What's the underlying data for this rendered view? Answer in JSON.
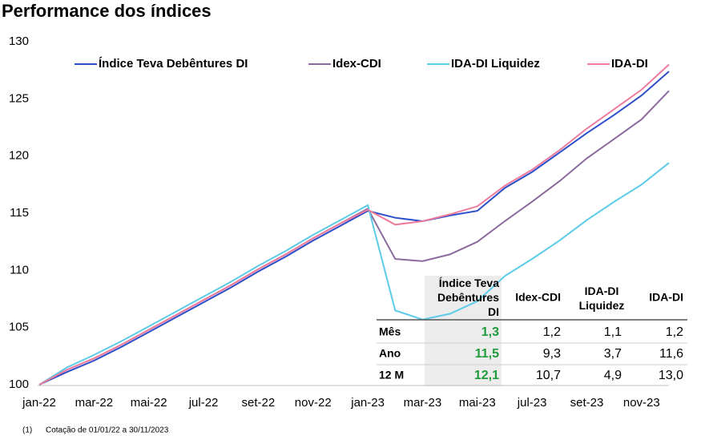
{
  "chart_data": {
    "type": "line",
    "title": "Performance dos índices",
    "categories": [
      "jan-22",
      null,
      "mar-22",
      null,
      "mai-22",
      null,
      "jul-22",
      null,
      "set-22",
      null,
      "nov-22",
      null,
      "jan-23",
      null,
      "mar-23",
      null,
      "mai-23",
      null,
      "jul-23",
      null,
      "set-23",
      null,
      "nov-23",
      null
    ],
    "series": [
      {
        "name": "Índice Teva Debêntures DI",
        "color": "#2e4fc9",
        "values": [
          100,
          101.1,
          102.1,
          103.3,
          104.6,
          105.9,
          107.2,
          108.5,
          109.9,
          111.2,
          112.6,
          113.9,
          115.2,
          114.6,
          114.3,
          114.8,
          115.2,
          117.2,
          118.6,
          120.3,
          122.0,
          123.6,
          125.3,
          127.4
        ]
      },
      {
        "name": "Idex-CDI",
        "color": "#8b6a9e",
        "values": [
          100,
          101.3,
          102.3,
          103.5,
          104.8,
          106.1,
          107.4,
          108.7,
          110.1,
          111.4,
          112.8,
          114.1,
          115.4,
          111.0,
          110.8,
          111.4,
          112.5,
          114.3,
          116.0,
          117.8,
          119.8,
          121.5,
          123.2,
          125.7
        ]
      },
      {
        "name": "IDA-DI Liquidez",
        "color": "#5ccbe8",
        "values": [
          100,
          101.5,
          102.6,
          103.8,
          105.1,
          106.4,
          107.7,
          109.0,
          110.4,
          111.7,
          113.1,
          114.4,
          115.7,
          106.5,
          105.7,
          106.2,
          107.3,
          109.5,
          111.0,
          112.6,
          114.4,
          116.0,
          117.5,
          119.4
        ]
      },
      {
        "name": "IDA-DI",
        "color": "#ee7b9b",
        "values": [
          100,
          101.3,
          102.3,
          103.5,
          104.8,
          106.1,
          107.4,
          108.7,
          110.1,
          111.4,
          112.8,
          114.1,
          115.3,
          114.0,
          114.3,
          114.9,
          115.6,
          117.4,
          118.8,
          120.5,
          122.4,
          124.1,
          125.8,
          128.0
        ]
      }
    ],
    "ylim": [
      100,
      130
    ],
    "yticks": [
      100,
      105,
      110,
      115,
      120,
      125,
      130
    ],
    "grid": false,
    "legend": "top"
  },
  "table": {
    "header": [
      "Índice Teva Debêntures DI",
      "Idex-CDI",
      "IDA-DI Liquidez",
      "IDA-DI"
    ],
    "rows": [
      [
        "Mês",
        "1,3",
        "1,2",
        "1,1",
        "1,2"
      ],
      [
        "Ano",
        "11,5",
        "9,3",
        "3,7",
        "11,6"
      ],
      [
        "12 M",
        "12,1",
        "10,7",
        "4,9",
        "13,0"
      ]
    ]
  },
  "footnote": {
    "marker": "(1)",
    "text": "Cotação de 01/01/22 a 30/11/2023"
  }
}
